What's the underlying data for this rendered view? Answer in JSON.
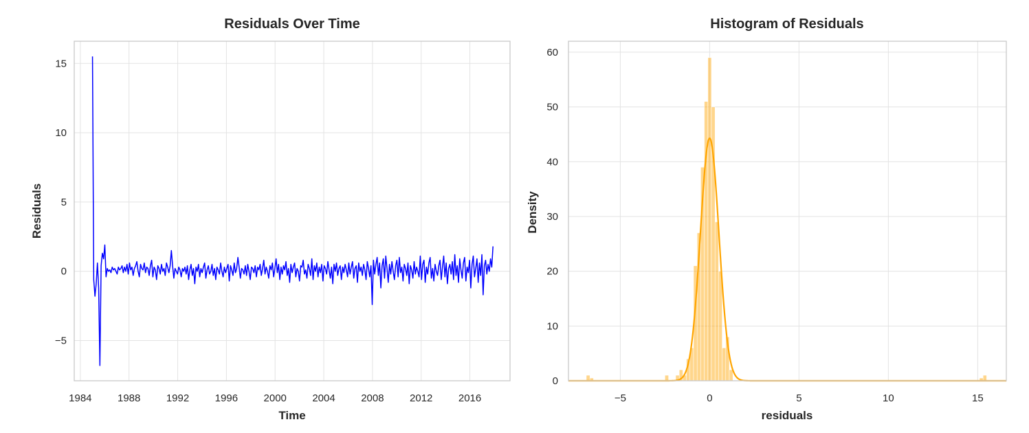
{
  "chart_data": [
    {
      "type": "line",
      "title": "Residuals Over Time",
      "xlabel": "Time",
      "ylabel": "Residuals",
      "xlim": [
        1983.5,
        2019.3
      ],
      "ylim": [
        -7.9,
        16.6
      ],
      "xticks": [
        "1984",
        "1988",
        "1992",
        "1996",
        "2000",
        "2004",
        "2008",
        "2012",
        "2016"
      ],
      "yticks": [
        "15",
        "10",
        "5",
        "0",
        "−5"
      ],
      "grid": true,
      "line_color": "#0000ff",
      "series": [
        {
          "frequency": "monthly",
          "x_start": 1985.0,
          "x_end": 2017.9,
          "values": [
            15.5,
            -0.6,
            -1.8,
            -0.9,
            0.6,
            -1.2,
            -6.8,
            0.4,
            1.3,
            0.9,
            1.9,
            -0.4,
            0.2,
            0.0,
            0.1,
            -0.1,
            0.3,
            0.1,
            0.2,
            0.0,
            -0.2,
            0.3,
            0.1,
            0.2,
            0.4,
            -0.1,
            0.3,
            0.0,
            0.5,
            -0.2,
            0.6,
            0.1,
            0.3,
            -0.3,
            0.2,
            0.4,
            0.7,
            0.0,
            -0.4,
            0.5,
            0.2,
            0.1,
            0.6,
            -0.1,
            0.3,
            0.2,
            -0.3,
            0.4,
            0.8,
            -0.4,
            0.3,
            0.1,
            -0.6,
            0.4,
            0.2,
            -0.2,
            0.5,
            0.0,
            0.2,
            -0.3,
            0.6,
            0.3,
            -0.1,
            0.4,
            1.5,
            0.4,
            -0.5,
            0.2,
            0.0,
            -0.2,
            0.3,
            0.1,
            -0.4,
            0.2,
            0.0,
            0.3,
            -0.2,
            0.4,
            -0.6,
            0.1,
            0.5,
            -0.3,
            0.2,
            -0.9,
            0.3,
            0.0,
            0.5,
            -0.4,
            0.2,
            -0.1,
            0.3,
            0.6,
            -0.5,
            0.1,
            0.4,
            -0.2,
            0.0,
            0.5,
            -0.3,
            0.2,
            -0.6,
            0.3,
            0.1,
            -0.2,
            0.6,
            0.0,
            -0.4,
            0.3,
            -0.1,
            0.2,
            0.5,
            -0.7,
            0.4,
            0.1,
            -0.3,
            0.6,
            -0.1,
            0.2,
            1.0,
            0.3,
            -0.5,
            0.2,
            0.1,
            -0.2,
            0.4,
            -0.3,
            0.5,
            0.0,
            -0.6,
            0.3,
            0.2,
            -0.1,
            0.4,
            -0.4,
            0.3,
            0.1,
            0.5,
            -0.3,
            0.2,
            0.8,
            -0.2,
            0.3,
            0.0,
            -0.5,
            0.4,
            0.1,
            0.6,
            -0.4,
            0.2,
            0.9,
            -0.1,
            0.5,
            -0.6,
            0.3,
            -0.2,
            0.4,
            0.1,
            0.7,
            -0.3,
            0.2,
            -0.8,
            0.5,
            -0.1,
            0.3,
            0.6,
            -0.4,
            0.2,
            0.0,
            -0.7,
            0.4,
            0.3,
            0.8,
            -0.2,
            0.1,
            -0.5,
            0.5,
            0.2,
            -0.3,
            0.9,
            -0.6,
            0.4,
            0.0,
            0.6,
            -0.4,
            0.3,
            -0.1,
            0.5,
            -0.7,
            0.4,
            0.2,
            -0.2,
            0.7,
            0.1,
            -0.5,
            0.3,
            -0.9,
            0.5,
            0.0,
            0.6,
            -0.3,
            0.2,
            0.4,
            -0.6,
            0.3,
            -0.1,
            0.5,
            0.1,
            -0.4,
            0.6,
            -0.2,
            0.3,
            0.7,
            -0.5,
            0.2,
            0.4,
            -0.8,
            0.6,
            0.0,
            0.3,
            -0.3,
            0.5,
            0.1,
            -0.6,
            0.7,
            0.2,
            -0.4,
            0.4,
            -2.4,
            0.8,
            -0.2,
            0.5,
            1.0,
            -0.3,
            0.6,
            -1.2,
            0.4,
            0.9,
            -0.5,
            1.1,
            0.2,
            -0.8,
            0.5,
            -0.2,
            0.7,
            0.0,
            -0.6,
            0.4,
            0.8,
            -0.4,
            1.0,
            -0.1,
            0.3,
            -0.7,
            0.5,
            0.2,
            -0.3,
            0.6,
            -0.9,
            0.4,
            0.1,
            -0.5,
            0.7,
            -0.2,
            0.3,
            0.0,
            -0.4,
            1.1,
            -0.6,
            0.5,
            0.8,
            -0.8,
            0.3,
            -0.2,
            0.6,
            1.0,
            -0.5,
            0.2,
            -0.7,
            0.5,
            0.0,
            -0.3,
            0.4,
            0.8,
            -0.6,
            0.3,
            1.1,
            -0.4,
            0.6,
            -0.9,
            0.2,
            0.5,
            -0.2,
            0.7,
            -0.6,
            1.2,
            -0.3,
            0.4,
            -0.8,
            0.9,
            0.1,
            -0.5,
            0.6,
            1.0,
            -0.7,
            0.3,
            -0.1,
            0.8,
            -1.2,
            0.5,
            1.1,
            -0.4,
            0.2,
            0.9,
            -0.8,
            0.6,
            -0.3,
            1.2,
            -1.7,
            0.4,
            0.8,
            -0.2,
            0.5,
            0.0,
            0.9,
            0.3,
            1.8
          ]
        }
      ]
    },
    {
      "type": "histogram",
      "title": "Histogram of Residuals",
      "xlabel": "residuals",
      "ylabel": "Density",
      "xlim": [
        -7.9,
        16.6
      ],
      "ylim": [
        0,
        62
      ],
      "xticks": [
        "−5",
        "0",
        "5",
        "10",
        "15"
      ],
      "yticks": [
        "0",
        "10",
        "20",
        "30",
        "40",
        "50",
        "60"
      ],
      "grid": true,
      "bar_color": "#ffa500",
      "kde_color": "#ffa500",
      "bin_width": 0.2,
      "bins": [
        {
          "x": -6.8,
          "height": 1.0
        },
        {
          "x": -6.6,
          "height": 0.5
        },
        {
          "x": -2.4,
          "height": 1.0
        },
        {
          "x": -1.8,
          "height": 1.0
        },
        {
          "x": -1.6,
          "height": 2.0
        },
        {
          "x": -1.4,
          "height": 1.0
        },
        {
          "x": -1.2,
          "height": 4.0
        },
        {
          "x": -1.0,
          "height": 6.0
        },
        {
          "x": -0.8,
          "height": 21.0
        },
        {
          "x": -0.6,
          "height": 27.0
        },
        {
          "x": -0.4,
          "height": 39.0
        },
        {
          "x": -0.2,
          "height": 51.0
        },
        {
          "x": 0.0,
          "height": 59.0
        },
        {
          "x": 0.2,
          "height": 50.0
        },
        {
          "x": 0.4,
          "height": 29.0
        },
        {
          "x": 0.6,
          "height": 20.0
        },
        {
          "x": 0.8,
          "height": 6.0
        },
        {
          "x": 1.0,
          "height": 8.0
        },
        {
          "x": 1.2,
          "height": 2.0
        },
        {
          "x": 15.2,
          "height": 0.5
        },
        {
          "x": 15.4,
          "height": 1.0
        }
      ],
      "kde": {
        "center": 0.0,
        "peak": 44.3,
        "sd": 0.52
      }
    }
  ]
}
